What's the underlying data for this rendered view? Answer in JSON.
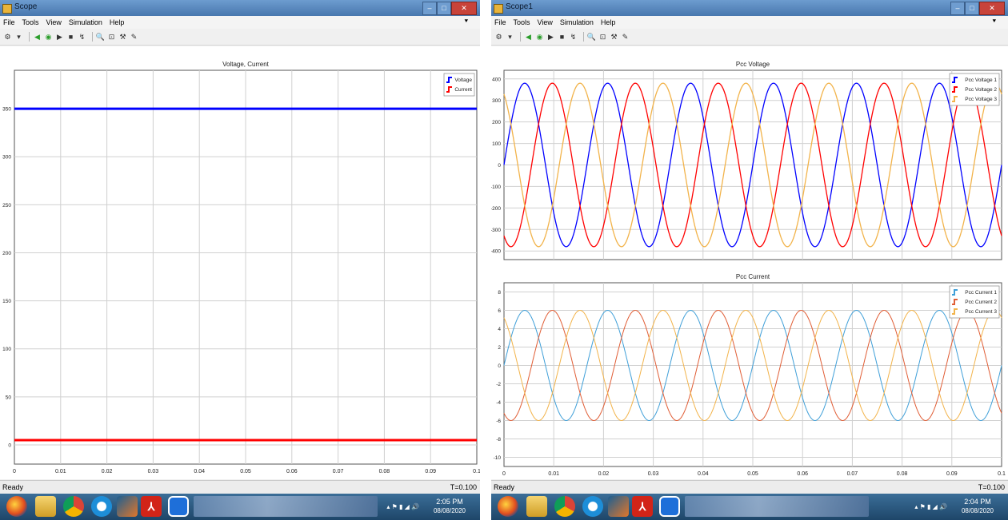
{
  "windows": [
    {
      "title": "Scope",
      "menu": [
        "File",
        "Tools",
        "View",
        "Simulation",
        "Help"
      ],
      "status": "Ready",
      "time_label": "T=0.100",
      "taskbar_time": "2:05 PM",
      "taskbar_date": "08/08/2020"
    },
    {
      "title": "Scope1",
      "menu": [
        "File",
        "Tools",
        "View",
        "Simulation",
        "Help"
      ],
      "status": "Ready",
      "time_label": "T=0.100",
      "taskbar_time": "2:04 PM",
      "taskbar_date": "08/08/2020"
    }
  ],
  "toolbar_icons": [
    "print-icon",
    "zoom-out-icon",
    "play-icon",
    "stop-icon",
    "step-icon",
    "zoom-icon",
    "autoscale-icon",
    "parameters-icon",
    "legend-icon"
  ],
  "taskbar_icons": [
    "windows-start-icon",
    "file-explorer-icon",
    "chrome-icon",
    "edge-icon",
    "matlab-icon",
    "acrobat-icon",
    "teamviewer-icon"
  ],
  "chart_data": [
    {
      "type": "line",
      "title": "Voltage, Current",
      "xlim": [
        0,
        0.1
      ],
      "ylim": [
        -20,
        390
      ],
      "xticks": [
        "0",
        "0.01",
        "0.02",
        "0.03",
        "0.04",
        "0.05",
        "0.06",
        "0.07",
        "0.08",
        "0.09",
        "0.1"
      ],
      "yticks": [
        "0",
        "50",
        "100",
        "150",
        "200",
        "250",
        "300",
        "350"
      ],
      "grid": true,
      "legend": "top-right",
      "series": [
        {
          "name": "Voltage",
          "color": "#0000ff",
          "x": [
            0,
            0.1
          ],
          "y": [
            350,
            350
          ]
        },
        {
          "name": "Current",
          "color": "#ff0000",
          "x": [
            0,
            0.1
          ],
          "y": [
            5,
            5
          ]
        }
      ]
    },
    {
      "type": "line",
      "title": "Pcc Voltage",
      "xlim": [
        0,
        0.1
      ],
      "ylim": [
        -440,
        440
      ],
      "xticks": [],
      "yticks": [
        "-400",
        "-300",
        "-200",
        "-100",
        "0",
        "100",
        "200",
        "300",
        "400"
      ],
      "grid": true,
      "legend": "top-right",
      "frequency_hz": 60,
      "series": [
        {
          "name": "Pcc Voltage 1",
          "color": "#0000ff",
          "amplitude": 380,
          "phase_deg": 0
        },
        {
          "name": "Pcc Voltage 2",
          "color": "#ff0000",
          "amplitude": 380,
          "phase_deg": -120
        },
        {
          "name": "Pcc Voltage 3",
          "color": "#f2b34a",
          "amplitude": 380,
          "phase_deg": 120
        }
      ]
    },
    {
      "type": "line",
      "title": "Pcc Current",
      "xlim": [
        0,
        0.1
      ],
      "ylim": [
        -11,
        9
      ],
      "xticks": [
        "0",
        "0.01",
        "0.02",
        "0.03",
        "0.04",
        "0.05",
        "0.06",
        "0.07",
        "0.08",
        "0.09",
        "0.1"
      ],
      "yticks": [
        "-10",
        "-8",
        "-6",
        "-4",
        "-2",
        "0",
        "2",
        "4",
        "6",
        "8"
      ],
      "grid": true,
      "legend": "top-right",
      "frequency_hz": 60,
      "series": [
        {
          "name": "Pcc Current 1",
          "color": "#3f9fd8",
          "amplitude": 6,
          "phase_deg": 0
        },
        {
          "name": "Pcc Current 2",
          "color": "#e05d35",
          "amplitude": 6,
          "phase_deg": -120
        },
        {
          "name": "Pcc Current 3",
          "color": "#f2b34a",
          "amplitude": 6,
          "phase_deg": 120
        }
      ]
    }
  ]
}
